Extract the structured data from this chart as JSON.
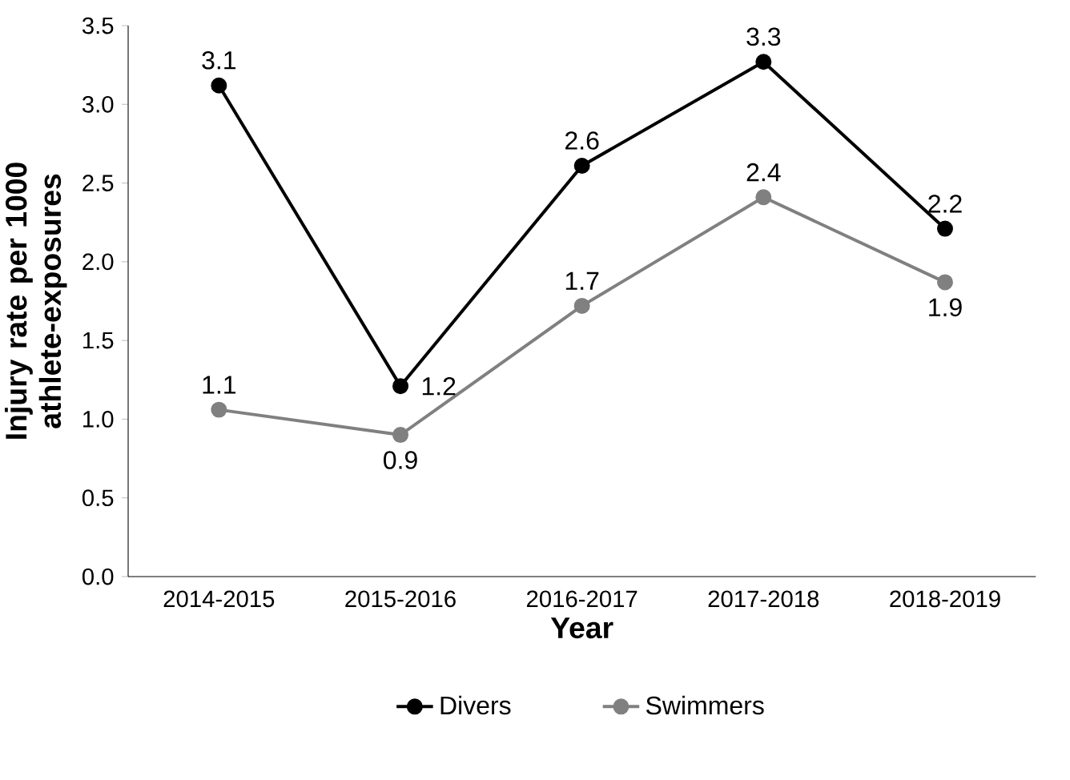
{
  "chart_data": {
    "type": "line",
    "xlabel": "Year",
    "ylabel": "Injury rate per 1000 athlete-exposures",
    "categories": [
      "2014-2015",
      "2015-2016",
      "2016-2017",
      "2017-2018",
      "2018-2019"
    ],
    "series": [
      {
        "name": "Divers",
        "color": "#000000",
        "values": [
          3.12,
          1.21,
          2.61,
          3.27,
          2.21
        ],
        "value_labels": [
          "3.1",
          "1.2",
          "2.6",
          "3.3",
          "2.2"
        ]
      },
      {
        "name": "Swimmers",
        "color": "#808080",
        "values": [
          1.06,
          0.9,
          1.72,
          2.41,
          1.87
        ],
        "value_labels": [
          "1.1",
          "0.9",
          "1.7",
          "2.4",
          "1.9"
        ]
      }
    ],
    "ylim": [
      0,
      3.5
    ],
    "yticks": [
      {
        "value": 0,
        "label": "0.0"
      },
      {
        "value": 0.5,
        "label": "0.5"
      },
      {
        "value": 1,
        "label": "1.0"
      },
      {
        "value": 1.5,
        "label": "1.5"
      },
      {
        "value": 2,
        "label": "2.0"
      },
      {
        "value": 2.5,
        "label": "2.5"
      },
      {
        "value": 3,
        "label": "3.0"
      },
      {
        "value": 3.5,
        "label": "3.5"
      }
    ],
    "legend": "bottom",
    "marker": "circle",
    "line_style": "solid"
  }
}
